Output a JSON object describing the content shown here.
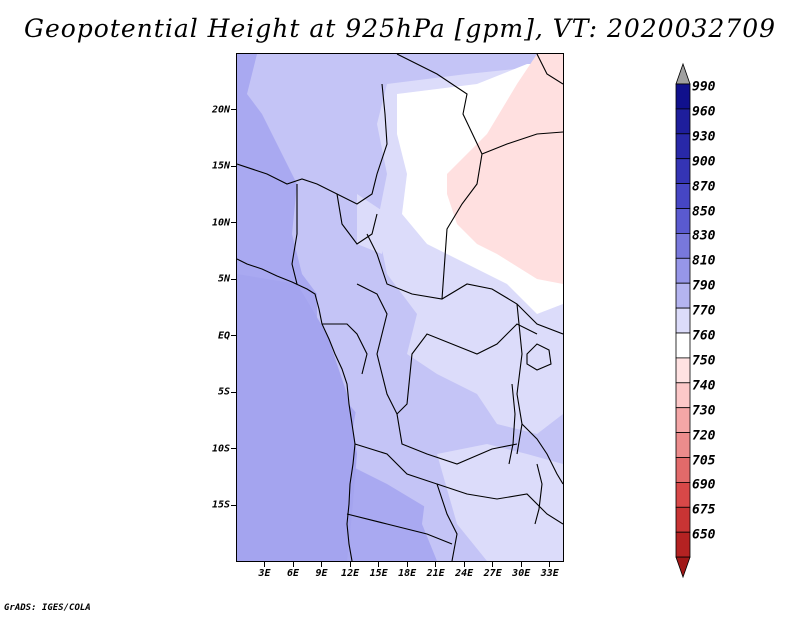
{
  "title": "Geopotential Height at 925hPa [gpm], VT: 2020032709",
  "footer": "GrADS: IGES/COLA",
  "map": {
    "lon_range": [
      0,
      34.5
    ],
    "lat_range": [
      -20,
      25
    ],
    "lat_ticks": [
      {
        "value": 20,
        "label": "20N"
      },
      {
        "value": 15,
        "label": "15N"
      },
      {
        "value": 10,
        "label": "10N"
      },
      {
        "value": 5,
        "label": "5N"
      },
      {
        "value": 0,
        "label": "EQ"
      },
      {
        "value": -5,
        "label": "5S"
      },
      {
        "value": -10,
        "label": "10S"
      },
      {
        "value": -15,
        "label": "15S"
      }
    ],
    "lon_ticks": [
      {
        "value": 3,
        "label": "3E"
      },
      {
        "value": 6,
        "label": "6E"
      },
      {
        "value": 9,
        "label": "9E"
      },
      {
        "value": 12,
        "label": "12E"
      },
      {
        "value": 15,
        "label": "15E"
      },
      {
        "value": 18,
        "label": "18E"
      },
      {
        "value": 21,
        "label": "21E"
      },
      {
        "value": 24,
        "label": "24E"
      },
      {
        "value": 27,
        "label": "27E"
      },
      {
        "value": 30,
        "label": "30E"
      },
      {
        "value": 33,
        "label": "33E"
      }
    ]
  },
  "colorbar": {
    "levels": [
      {
        "label": "990",
        "color": "#10108c"
      },
      {
        "label": "960",
        "color": "#1e1e9c"
      },
      {
        "label": "930",
        "color": "#2828a8"
      },
      {
        "label": "900",
        "color": "#3434b4"
      },
      {
        "label": "870",
        "color": "#4646c4"
      },
      {
        "label": "850",
        "color": "#5a5ad0"
      },
      {
        "label": "830",
        "color": "#7878dc"
      },
      {
        "label": "810",
        "color": "#9696e8"
      },
      {
        "label": "790",
        "color": "#b4b4f0"
      },
      {
        "label": "770",
        "color": "#dcdcfa"
      },
      {
        "label": "760",
        "color": "#ffffff"
      },
      {
        "label": "750",
        "color": "#ffe2e2"
      },
      {
        "label": "740",
        "color": "#fcc8c8"
      },
      {
        "label": "730",
        "color": "#f4a6a6"
      },
      {
        "label": "720",
        "color": "#ec8c8c"
      },
      {
        "label": "705",
        "color": "#e26a6a"
      },
      {
        "label": "690",
        "color": "#d84848"
      },
      {
        "label": "675",
        "color": "#c83434"
      },
      {
        "label": "650",
        "color": "#b42222"
      }
    ],
    "top_arrow_color": "#a0a0a0",
    "bottom_arrow_color": "#a01818"
  },
  "colors": {
    "fill_810": "#a9a9f1",
    "fill_790": "#c4c4f6",
    "fill_770": "#dcdcfa",
    "fill_760": "#ffffff",
    "fill_750": "#ffe0e0",
    "fill_830": "#8c8cee",
    "border": "#000000"
  }
}
